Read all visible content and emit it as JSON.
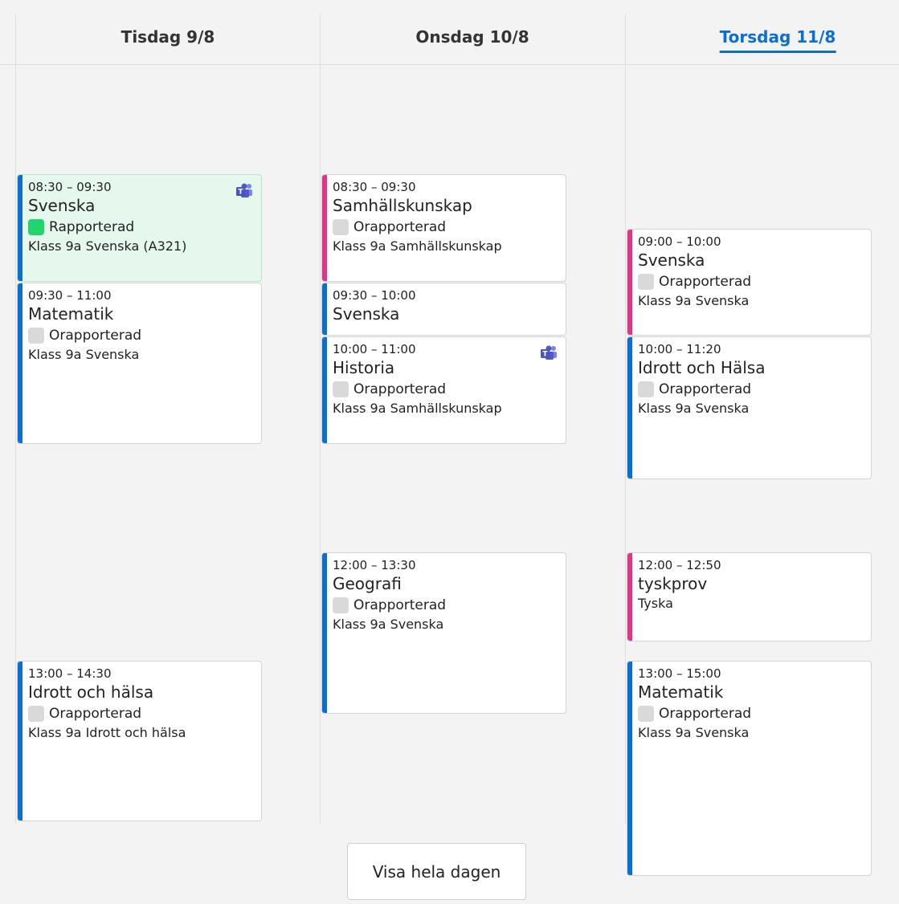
{
  "days": [
    {
      "label": "Tisdag 9/8",
      "events": [
        {
          "time": "08:30 – 09:30",
          "title": "Svenska",
          "status": "Rapporterad",
          "status_color": "#22d46c",
          "group": "Klass 9a Svenska (A321)",
          "teams": true,
          "accent": "#0b6fd2",
          "background": "#e6f8ee"
        },
        {
          "time": "09:30 – 11:00",
          "title": "Matematik",
          "status": "Orapporterad",
          "status_color": "#d9d9d9",
          "group": "Klass 9a Svenska",
          "accent": "#0b6fd2"
        },
        {
          "time": "13:00 – 14:30",
          "title": "Idrott och hälsa",
          "status": "Orapporterad",
          "status_color": "#d9d9d9",
          "group": "Klass 9a Idrott och hälsa",
          "accent": "#0b6fd2"
        }
      ]
    },
    {
      "label": "Onsdag 10/8",
      "events": [
        {
          "time": "08:30 – 09:30",
          "title": "Samhällskunskap",
          "status": "Orapporterad",
          "status_color": "#d9d9d9",
          "group": "Klass 9a Samhällskunskap",
          "accent": "#e1358a"
        },
        {
          "time": "09:30 – 10:00",
          "title": "Svenska",
          "accent": "#0b6fd2"
        },
        {
          "time": "10:00 – 11:00",
          "title": "Historia",
          "status": "Orapporterad",
          "status_color": "#d9d9d9",
          "group": "Klass 9a Samhällskunskap",
          "teams": true,
          "accent": "#0b6fd2"
        },
        {
          "time": "12:00 – 13:30",
          "title": "Geografi",
          "status": "Orapporterad",
          "status_color": "#d9d9d9",
          "group": "Klass 9a Svenska",
          "accent": "#0b6fd2"
        }
      ]
    },
    {
      "label": "Torsdag 11/8",
      "selected": true,
      "events": [
        {
          "time": "09:00 – 10:00",
          "title": "Svenska",
          "status": "Orapporterad",
          "status_color": "#d9d9d9",
          "group": "Klass 9a Svenska",
          "accent": "#e1358a"
        },
        {
          "time": "10:00 – 11:20",
          "title": "Idrott och Hälsa",
          "status": "Orapporterad",
          "status_color": "#d9d9d9",
          "group": "Klass 9a Svenska",
          "accent": "#0b6fd2"
        },
        {
          "time": "12:00 – 12:50",
          "title": "tyskprov",
          "group": "Tyska",
          "accent": "#e1358a"
        },
        {
          "time": "13:00 – 15:00",
          "title": "Matematik",
          "status": "Orapporterad",
          "status_color": "#d9d9d9",
          "group": "Klass 9a Svenska",
          "accent": "#0b6fd2"
        }
      ]
    }
  ],
  "button": "Visa hela dagen"
}
